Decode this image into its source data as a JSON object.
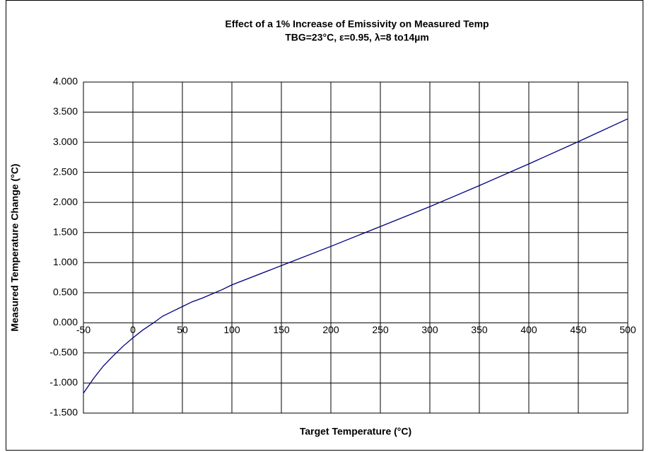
{
  "chart_data": {
    "type": "line",
    "title": "Effect of a 1% Increase of Emissivity on Measured Temp",
    "subtitle": "TBG=23°C, ε=0.95, λ=8 to14µm",
    "x_label": "Target Temperature (°C)",
    "y_label": "Measured Temperature Change (°C)",
    "x": [
      -50,
      -40,
      -30,
      -20,
      -10,
      0,
      10,
      20,
      30,
      40,
      50,
      60,
      70,
      80,
      90,
      100,
      150,
      200,
      250,
      300,
      350,
      400,
      450,
      500
    ],
    "series": [
      {
        "name": "Measured Temperature Change",
        "color": "#000080",
        "values": [
          -1.17,
          -0.93,
          -0.72,
          -0.55,
          -0.39,
          -0.25,
          -0.12,
          -0.01,
          0.11,
          0.19,
          0.27,
          0.35,
          0.41,
          0.48,
          0.55,
          0.63,
          0.95,
          1.27,
          1.6,
          1.93,
          2.28,
          2.64,
          3.01,
          3.39
        ]
      }
    ],
    "xlim": [
      -50,
      500
    ],
    "xticks": [
      -50,
      0,
      50,
      100,
      150,
      200,
      250,
      300,
      350,
      400,
      450,
      500
    ],
    "ylim": [
      -1.5,
      4
    ],
    "yticks": [
      {
        "value": -1.5,
        "label": "-1.500"
      },
      {
        "value": -1,
        "label": "-1.000"
      },
      {
        "value": -0.5,
        "label": "-0.500"
      },
      {
        "value": 0,
        "label": "0.000"
      },
      {
        "value": 0.5,
        "label": "0.500"
      },
      {
        "value": 1,
        "label": "1.000"
      },
      {
        "value": 1.5,
        "label": "1.500"
      },
      {
        "value": 2,
        "label": "2.000"
      },
      {
        "value": 2.5,
        "label": "2.500"
      },
      {
        "value": 3,
        "label": "3.000"
      },
      {
        "value": 3.5,
        "label": "3.500"
      },
      {
        "value": 4,
        "label": "4.000"
      }
    ],
    "grid": true
  }
}
